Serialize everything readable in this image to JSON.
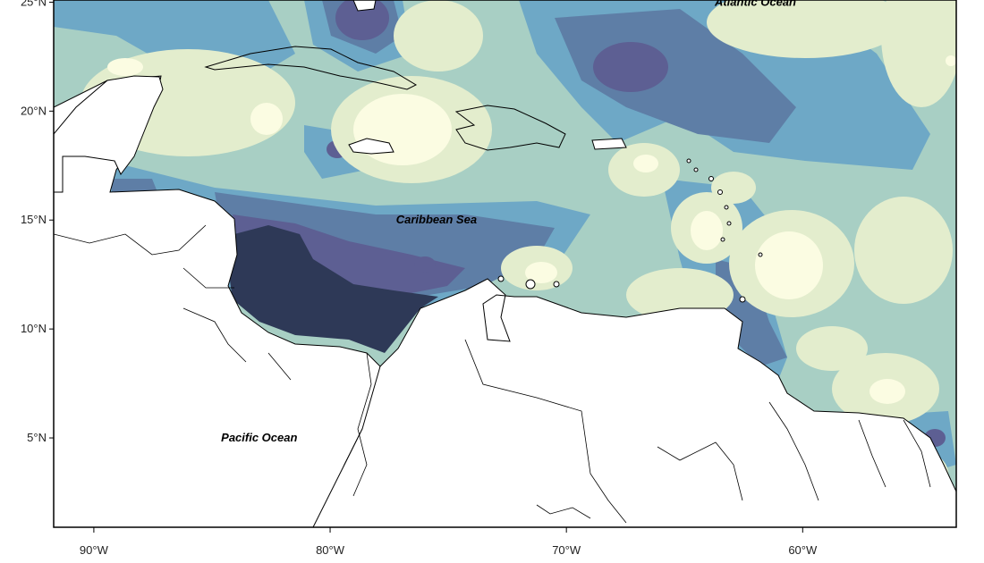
{
  "map": {
    "palette": {
      "lowest": "#fbfce2",
      "low": "#e3edcd",
      "lower_mid": "#a8cfc4",
      "mid": "#6ea8c6",
      "upper_mid": "#5e7ea6",
      "high": "#5d5f93",
      "highest": "#2e3957",
      "land": "#ffffff",
      "coastline": "#000000"
    },
    "y_axis_labels": [
      {
        "value": 25,
        "text": "25°N"
      },
      {
        "value": 20,
        "text": "20°N"
      },
      {
        "value": 15,
        "text": "15°N"
      },
      {
        "value": 10,
        "text": "10°N"
      },
      {
        "value": 5,
        "text": "5°N"
      }
    ],
    "x_axis_labels": [
      {
        "value": -90,
        "text": "90°W"
      },
      {
        "value": -80,
        "text": "80°W"
      },
      {
        "value": -70,
        "text": "70°W"
      },
      {
        "value": -60,
        "text": "60°W"
      }
    ],
    "region_labels": [
      {
        "name": "atlantic-ocean-label",
        "text": "Atlantic Ocean",
        "lon": -62,
        "lat": 25.0
      },
      {
        "name": "caribbean-sea-label",
        "text": "Caribbean Sea",
        "lon": -75.5,
        "lat": 15.0
      },
      {
        "name": "pacific-ocean-label",
        "text": "Pacific Ocean",
        "lon": -83,
        "lat": 5.0
      }
    ]
  }
}
